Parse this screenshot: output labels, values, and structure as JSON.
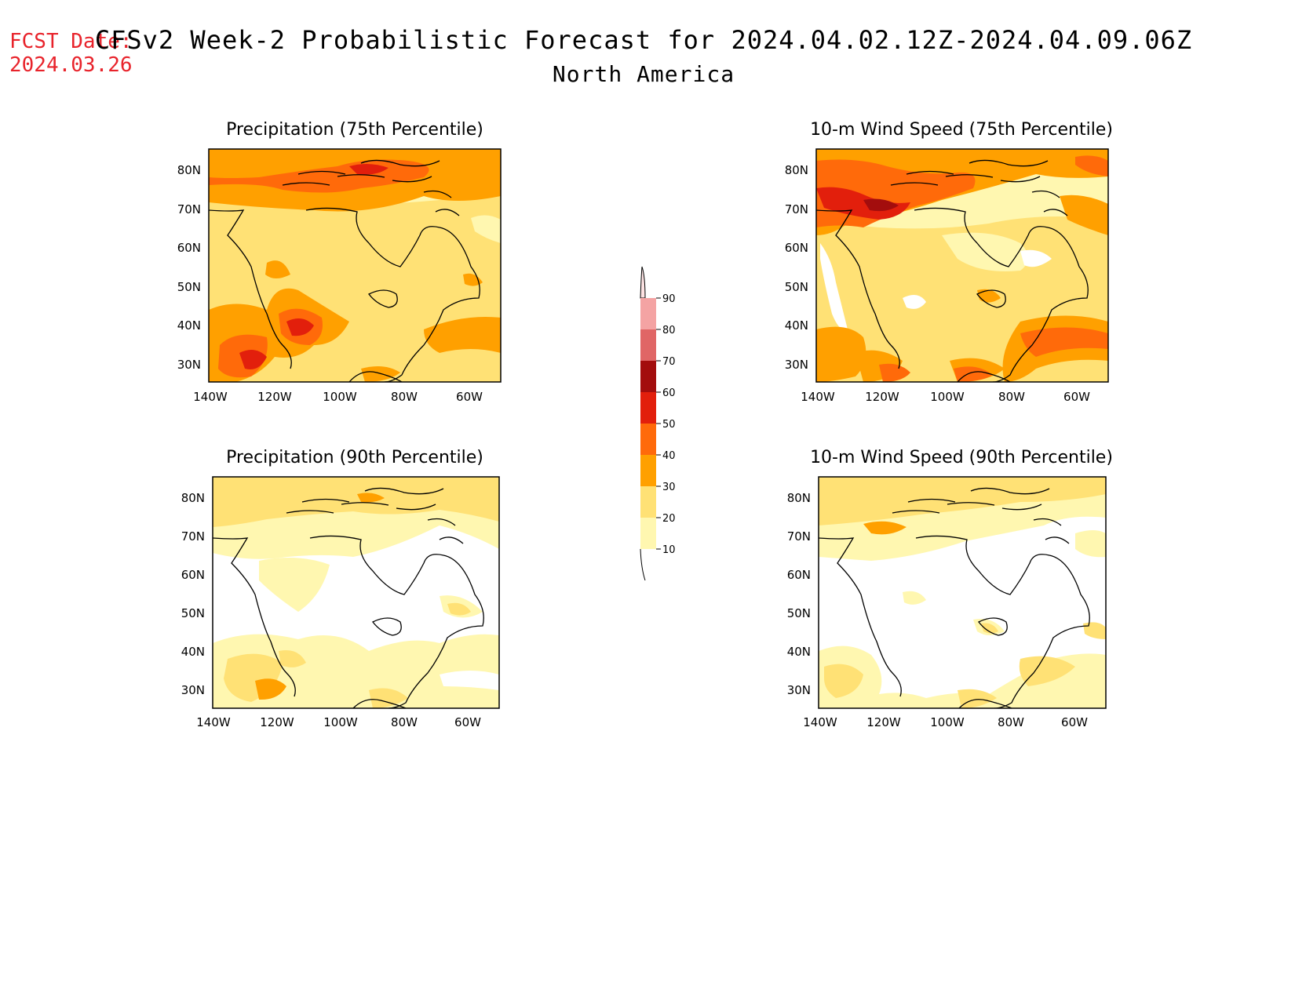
{
  "header": {
    "fcst_label": "FCST Date:",
    "fcst_date": "2024.03.26",
    "title": "CFSv2 Week-2 Probabilistic Forecast for 2024.04.02.12Z-2024.04.09.06Z",
    "region": "North America"
  },
  "axes": {
    "lat_labels": [
      "80N",
      "70N",
      "60N",
      "50N",
      "40N",
      "30N"
    ],
    "lon_labels": [
      "140W",
      "120W",
      "100W",
      "80W",
      "60W"
    ],
    "lon_range": [
      -140,
      -50
    ],
    "lat_range": [
      25,
      85
    ]
  },
  "panels": [
    {
      "title": "Precipitation (75th Percentile)",
      "variable": "precipitation",
      "percentile": 75
    },
    {
      "title": "10-m Wind Speed (75th Percentile)",
      "variable": "wind_speed",
      "percentile": 75
    },
    {
      "title": "Precipitation (90th Percentile)",
      "variable": "precipitation",
      "percentile": 90
    },
    {
      "title": "10-m Wind Speed (90th Percentile)",
      "variable": "wind_speed",
      "percentile": 90
    }
  ],
  "colorbar": {
    "labels": [
      "90",
      "80",
      "70",
      "60",
      "50",
      "40",
      "30",
      "20",
      "10"
    ],
    "colors": [
      "#fde3e3",
      "#f4a3a3",
      "#e06666",
      "#a30d0d",
      "#e21f0c",
      "#ff6a0a",
      "#ffa000",
      "#ffe175",
      "#fff7b0"
    ]
  }
}
